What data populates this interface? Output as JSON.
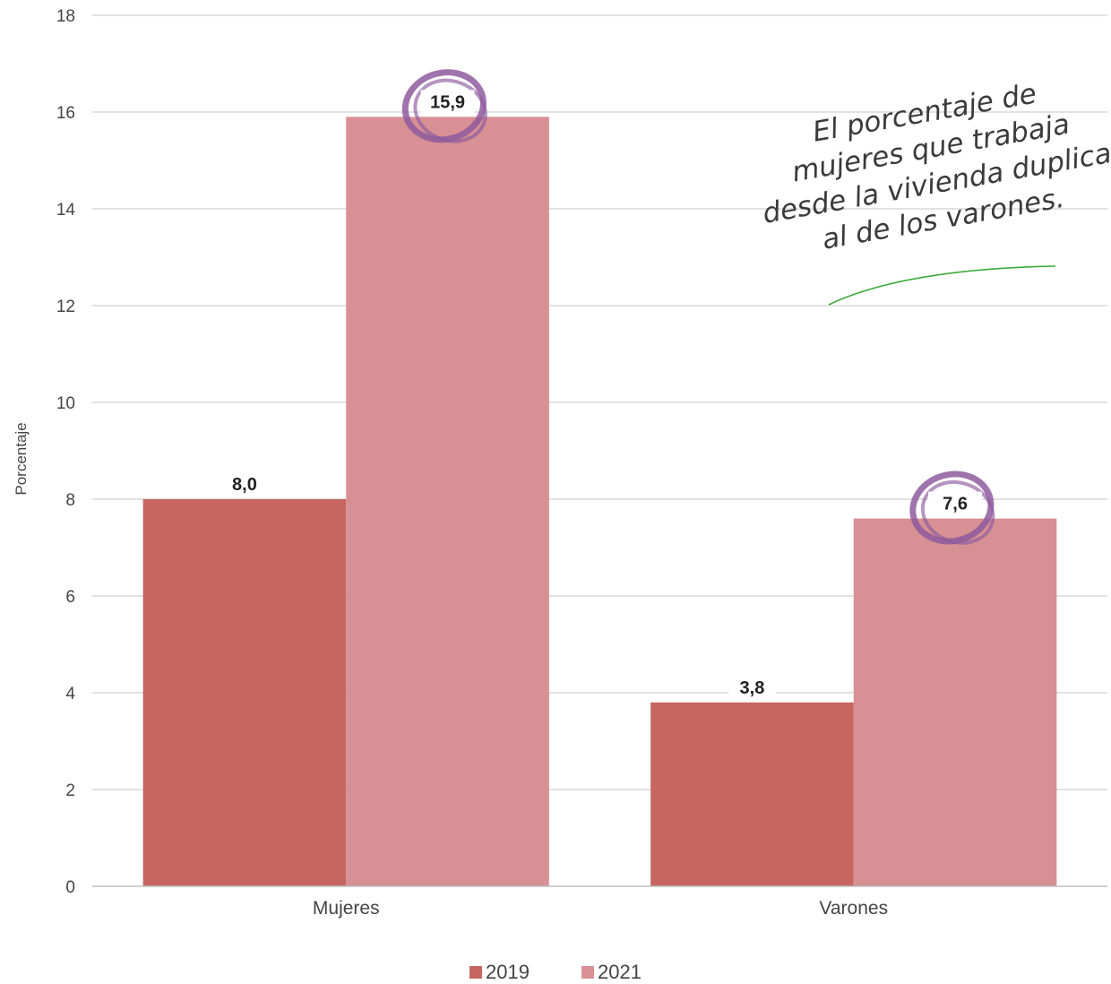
{
  "chart_data": {
    "type": "bar",
    "categories": [
      "Mujeres",
      "Varones"
    ],
    "series": [
      {
        "name": "2019",
        "values": [
          8.0,
          3.8
        ],
        "labels": [
          "8,0",
          "3,8"
        ],
        "color": "#c76661"
      },
      {
        "name": "2021",
        "values": [
          15.9,
          7.6
        ],
        "labels": [
          "15,9",
          "7,6"
        ],
        "color": "#d79093"
      }
    ],
    "ylabel": "Porcentaje",
    "ylim": [
      0,
      18
    ],
    "yticks": [
      0,
      2,
      4,
      6,
      8,
      10,
      12,
      14,
      16,
      18
    ],
    "grid": true,
    "legend_position": "bottom",
    "annotation": {
      "lines": [
        "El porcentaje de",
        "mujeres que trabaja",
        "desde la vivienda duplica",
        "al de los varones."
      ],
      "highlight_color": "#8e5a9e",
      "arrow_color": "#3aaa3a"
    }
  }
}
